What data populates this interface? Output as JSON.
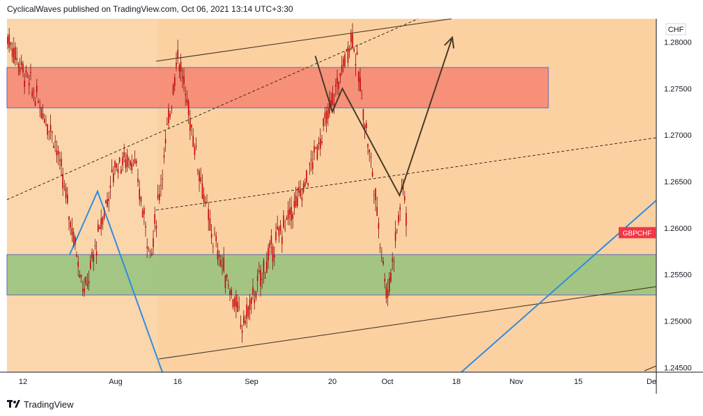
{
  "header": {
    "publisher_text": "CyclicalWaves published on TradingView.com, Oct 06, 2021 13:14 UTC+3:30"
  },
  "footer": {
    "brand": "TradingView",
    "logo_icon": "tradingview-logo-icon"
  },
  "price_scale": {
    "currency": "CHF",
    "labels": [
      "1.28000",
      "1.27500",
      "1.27000",
      "1.26500",
      "1.26000",
      "1.25500",
      "1.25000",
      "1.24500"
    ]
  },
  "symbol_tag": {
    "label": "GBPCHF",
    "value": 1.2595,
    "color": "#f23645"
  },
  "chart_data": {
    "type": "candlestick",
    "symbol": "GBPCHF",
    "ylim": [
      1.2445,
      1.2825
    ],
    "y_ticks": [
      1.28,
      1.275,
      1.27,
      1.265,
      1.26,
      1.255,
      1.25,
      1.245
    ],
    "x_ticks": [
      "12",
      "Aug",
      "16",
      "Sep",
      "20",
      "Oct",
      "18",
      "Nov",
      "15",
      "De"
    ],
    "candle_color": "#cc0000",
    "price_path": [
      {
        "date": "Jul 12",
        "price": 1.277
      },
      {
        "date": "Jul 19",
        "price": 1.27
      },
      {
        "date": "Jul 26",
        "price": 1.253
      },
      {
        "date": "Aug 02",
        "price": 1.267
      },
      {
        "date": "Aug 06",
        "price": 1.2675
      },
      {
        "date": "Aug 10",
        "price": 1.257
      },
      {
        "date": "Aug 16",
        "price": 1.279
      },
      {
        "date": "Aug 23",
        "price": 1.26
      },
      {
        "date": "Aug 30",
        "price": 1.2495
      },
      {
        "date": "Sep 06",
        "price": 1.258
      },
      {
        "date": "Sep 13",
        "price": 1.264
      },
      {
        "date": "Sep 20",
        "price": 1.2735
      },
      {
        "date": "Sep 24",
        "price": 1.281
      },
      {
        "date": "Sep 28",
        "price": 1.266
      },
      {
        "date": "Oct 01",
        "price": 1.2525
      },
      {
        "date": "Oct 04",
        "price": 1.262
      },
      {
        "date": "Oct 05",
        "price": 1.265
      },
      {
        "date": "Oct 06",
        "price": 1.2595
      }
    ],
    "zones": [
      {
        "name": "resistance",
        "top": 1.2785,
        "bottom": 1.274,
        "color": "#f47a6b"
      },
      {
        "name": "support",
        "top": 1.258,
        "bottom": 1.2535,
        "color": "#8fc27a"
      }
    ],
    "projection": [
      {
        "date": "Sep 16",
        "price": 1.2785
      },
      {
        "date": "Sep 20",
        "price": 1.2725
      },
      {
        "date": "Sep 22",
        "price": 1.275
      },
      {
        "date": "Oct 04",
        "price": 1.2635
      },
      {
        "date": "Oct 17",
        "price": 1.2805
      }
    ],
    "grid": false,
    "background": "#fbd6ab"
  }
}
